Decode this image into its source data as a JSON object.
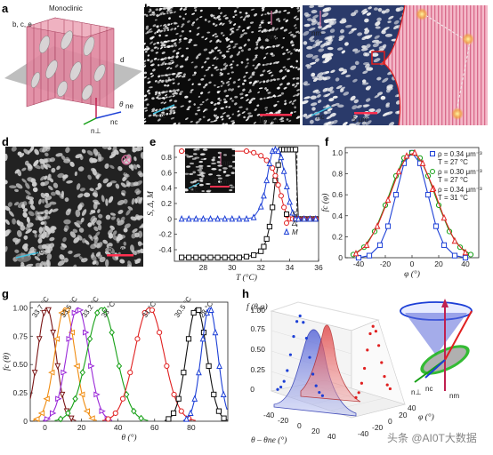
{
  "panel_labels": [
    "a",
    "b",
    "c",
    "d",
    "e",
    "f",
    "g",
    "h"
  ],
  "panel_a": {
    "title": "Monoclinic",
    "plane_left": "b, c, e",
    "plane_right": "d",
    "theta": "θ",
    "theta_sub": "ne",
    "n_perp": "n⊥",
    "n_c": "nc",
    "n_m": "nm"
  },
  "panel_b": {
    "scale": "10 μm",
    "n_m": "nm",
    "n_c": "nc"
  },
  "panel_c": {
    "scale": "5 μm",
    "n_m": "nm",
    "n_c": "nc"
  },
  "panel_d": {
    "scale": "5 μm",
    "n_m": "nm",
    "n_c": "nc"
  },
  "panel_e": {
    "inset_scale": "5 μm",
    "inset_nm": "nm",
    "inset_nc": "nc"
  },
  "panel_h": {
    "zlabel": "f (θ,φ)",
    "n_perp": "n⊥",
    "n_c": "nc",
    "n_m": "nm",
    "ylabel": "φ (°)",
    "xlabel": "θ – θne (°)",
    "z_ticks": [
      "0",
      "0.25",
      "0.50",
      "0.75",
      "1.00"
    ],
    "x_ticks": [
      "-40",
      "-20",
      "0",
      "20",
      "40"
    ],
    "y_ticks": [
      "-40",
      "-20",
      "0",
      "20",
      "40"
    ]
  },
  "watermark": "头条 @AI0T大数据",
  "chart_data": [
    {
      "panel": "e",
      "type": "line",
      "xlabel": "T (°C)",
      "ylabel": "S, Δ, M",
      "xlim": [
        26,
        36
      ],
      "ylim": [
        -0.55,
        0.95
      ],
      "x_ticks": [
        "28",
        "30",
        "32",
        "34",
        "36"
      ],
      "y_ticks": [
        "-0.4",
        "-0.2",
        "0",
        "0.2",
        "0.4",
        "0.6",
        "0.8"
      ],
      "legend_position": "bottom-right",
      "series": [
        {
          "name": "S",
          "marker": "square",
          "color": "#111111",
          "x": [
            26.5,
            27,
            27.5,
            28,
            28.5,
            29,
            29.5,
            30,
            30.5,
            31,
            31.5,
            32,
            32.2,
            32.4,
            32.6,
            32.8,
            33,
            33.2,
            33.4,
            33.6,
            33.8,
            34,
            34.2,
            34.4,
            34.6,
            35,
            35.4,
            35.8
          ],
          "y": [
            -0.5,
            -0.5,
            -0.5,
            -0.5,
            -0.5,
            -0.5,
            -0.5,
            -0.5,
            -0.5,
            -0.49,
            -0.47,
            -0.42,
            -0.36,
            -0.26,
            -0.1,
            0.15,
            0.5,
            0.7,
            0.9,
            0.9,
            0.9,
            0.9,
            0.9,
            0.9,
            0.0,
            0.0,
            0.0,
            0.0
          ]
        },
        {
          "name": "Δ",
          "marker": "circle",
          "color": "#e02020",
          "x": [
            26.5,
            28,
            29.5,
            31,
            31.5,
            32,
            32.4,
            32.8,
            33,
            33.2,
            33.4,
            33.6,
            33.8,
            34,
            34.2,
            34.4,
            34.6,
            35,
            35.4,
            35.8
          ],
          "y": [
            0.88,
            0.88,
            0.88,
            0.88,
            0.86,
            0.82,
            0.76,
            0.66,
            0.56,
            0.44,
            0.3,
            0.15,
            0.05,
            0.0,
            0.0,
            0.0,
            0.0,
            0.0,
            0.0,
            0.0
          ]
        },
        {
          "name": "M",
          "marker": "triangle",
          "color": "#1c3fd6",
          "x": [
            26.5,
            27,
            27.5,
            28,
            28.5,
            29,
            29.5,
            30,
            30.5,
            31,
            31.5,
            32,
            32.2,
            32.4,
            32.6,
            32.8,
            33,
            33.2,
            33.4,
            33.6,
            33.8,
            34,
            34.2,
            34.4,
            34.6,
            35,
            35.4,
            35.8
          ],
          "y": [
            0.0,
            0.0,
            0.0,
            0.0,
            0.0,
            0.0,
            0.0,
            0.0,
            0.0,
            0.0,
            0.02,
            0.16,
            0.3,
            0.5,
            0.72,
            0.88,
            0.9,
            0.88,
            0.8,
            0.62,
            0.42,
            0.22,
            0.08,
            0.0,
            0.0,
            0.0,
            0.0,
            0.0
          ]
        }
      ]
    },
    {
      "panel": "f",
      "type": "line",
      "xlabel": "φ (°)",
      "ylabel": "fc (φ)",
      "xlim": [
        -50,
        50
      ],
      "ylim": [
        0,
        1.05
      ],
      "x_ticks": [
        "-40",
        "-20",
        "0",
        "20",
        "40"
      ],
      "y_ticks": [
        "0",
        "0.2",
        "0.4",
        "0.6",
        "0.8",
        "1.0"
      ],
      "legend_position": "top-right",
      "series": [
        {
          "name": "ρ = 0.34 μm⁻³",
          "name2": "T = 27 °C",
          "marker": "square",
          "color": "#1c3fd6",
          "x": [
            -40,
            -32,
            -24,
            -18,
            -12,
            -6,
            0,
            6,
            12,
            18,
            24,
            32,
            40
          ],
          "y": [
            0.0,
            0.02,
            0.12,
            0.3,
            0.6,
            0.9,
            1.0,
            0.9,
            0.6,
            0.3,
            0.12,
            0.02,
            0.0
          ]
        },
        {
          "name": "ρ = 0.30 μm⁻³",
          "name2": "T = 27 °C",
          "marker": "circle",
          "color": "#16a016",
          "x": [
            -44,
            -36,
            -28,
            -20,
            -12,
            -6,
            0,
            6,
            12,
            20,
            28,
            36,
            44
          ],
          "y": [
            0.03,
            0.1,
            0.25,
            0.5,
            0.78,
            0.95,
            1.0,
            0.95,
            0.78,
            0.5,
            0.25,
            0.1,
            0.03
          ]
        },
        {
          "name": "ρ = 0.34 μm⁻³",
          "name2": "T = 31 °C",
          "marker": "triangle",
          "color": "#e02020",
          "x": [
            -42,
            -34,
            -26,
            -18,
            -10,
            -4,
            2,
            8,
            16,
            24,
            32,
            40
          ],
          "y": [
            0.04,
            0.12,
            0.3,
            0.55,
            0.82,
            0.97,
            1.0,
            0.9,
            0.66,
            0.38,
            0.16,
            0.05
          ]
        }
      ]
    },
    {
      "panel": "g",
      "type": "line",
      "xlabel": "θ (°)",
      "ylabel": "fc (θ)",
      "xlim": [
        -8,
        100
      ],
      "ylim": [
        0,
        1.05
      ],
      "x_ticks": [
        "0",
        "20",
        "40",
        "60",
        "80"
      ],
      "y_ticks": [
        "0",
        "0.25",
        "0.50",
        "0.75",
        "1.00"
      ],
      "series": [
        {
          "name": "33.7 °C",
          "color": "#7a1515",
          "marker": "triangle-down",
          "center": 1,
          "width": 5
        },
        {
          "name": "33.5 °C",
          "color": "#f08c10",
          "marker": "triangle-left",
          "center": 11,
          "width": 5.5
        },
        {
          "name": "33.2 °C",
          "color": "#9a28d8",
          "marker": "triangle-right",
          "center": 18,
          "width": 6
        },
        {
          "name": "33 °C",
          "color": "#16a016",
          "marker": "diamond",
          "center": 31,
          "width": 8
        },
        {
          "name": "31 °C",
          "color": "#e02020",
          "marker": "circle",
          "center": 57,
          "width": 8
        },
        {
          "name": "30.5 °C",
          "color": "#111111",
          "marker": "square",
          "center": 83,
          "width": 5.5
        },
        {
          "name": "28 °C",
          "color": "#1c3fd6",
          "marker": "triangle",
          "center": 90,
          "width": 4.5
        }
      ]
    }
  ]
}
